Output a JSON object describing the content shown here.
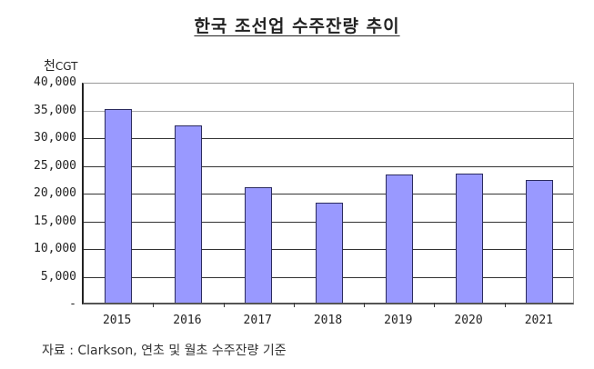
{
  "chart_data": {
    "type": "bar",
    "title": "한국 조선업 수주잔량 추이",
    "ylabel": "천CGT",
    "xlabel": "",
    "categories": [
      "2015",
      "2016",
      "2017",
      "2018",
      "2019",
      "2020",
      "2021"
    ],
    "values": [
      35000,
      32000,
      20800,
      18000,
      23100,
      23300,
      22100
    ],
    "ylim": [
      0,
      40000
    ],
    "yticks": [
      "40,000",
      "35,000",
      "30,000",
      "25,000",
      "20,000",
      "15,000",
      "10,000",
      "5,000",
      "-"
    ],
    "grid": true,
    "bar_color": "#9999ff",
    "bar_edge_color": "#2b2b5e",
    "source": "자료 : Clarkson, 연초 및 월초 수주잔량 기준"
  },
  "unit_main": "천",
  "unit_sub": "CGT"
}
